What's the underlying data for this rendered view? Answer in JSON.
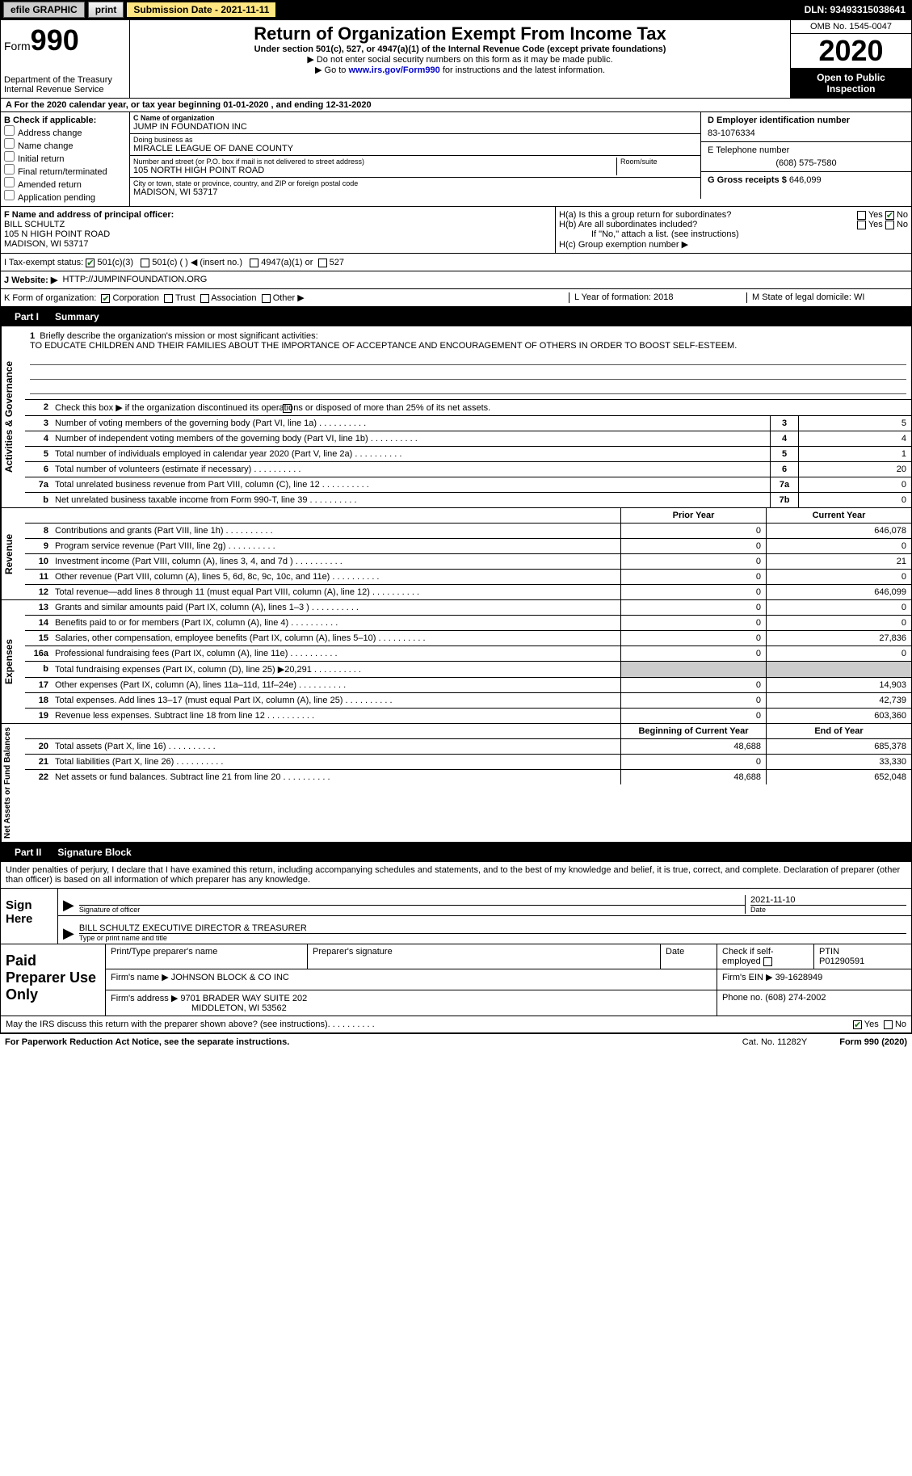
{
  "topbar": {
    "efile": "efile GRAPHIC",
    "print": "print",
    "submission": "Submission Date - 2021-11-11",
    "dln": "DLN: 93493315038641"
  },
  "header": {
    "form_word": "Form",
    "form_num": "990",
    "title": "Return of Organization Exempt From Income Tax",
    "subtitle": "Under section 501(c), 527, or 4947(a)(1) of the Internal Revenue Code (except private foundations)",
    "note1": "▶ Do not enter social security numbers on this form as it may be made public.",
    "note2_pre": "▶ Go to ",
    "note2_link": "www.irs.gov/Form990",
    "note2_post": " for instructions and the latest information.",
    "dept": "Department of the Treasury\nInternal Revenue Service",
    "omb": "OMB No. 1545-0047",
    "year": "2020",
    "open": "Open to Public Inspection"
  },
  "line_a": "A For the 2020 calendar year, or tax year beginning 01-01-2020  , and ending 12-31-2020",
  "box_b": {
    "label": "B Check if applicable:",
    "opt1": "Address change",
    "opt2": "Name change",
    "opt3": "Initial return",
    "opt4": "Final return/terminated",
    "opt5": "Amended return",
    "opt6": "Application pending"
  },
  "box_c": {
    "name_label": "C Name of organization",
    "name": "JUMP IN FOUNDATION INC",
    "dba_label": "Doing business as",
    "dba": "MIRACLE LEAGUE OF DANE COUNTY",
    "addr_label": "Number and street (or P.O. box if mail is not delivered to street address)",
    "room_label": "Room/suite",
    "addr": "105 NORTH HIGH POINT ROAD",
    "city_label": "City or town, state or province, country, and ZIP or foreign postal code",
    "city": "MADISON, WI  53717"
  },
  "box_d": {
    "label": "D Employer identification number",
    "ein": "83-1076334",
    "phone_label": "E Telephone number",
    "phone": "(608) 575-7580",
    "gross_label": "G Gross receipts $",
    "gross": "646,099"
  },
  "box_f": {
    "label": "F Name and address of principal officer:",
    "name": "BILL SCHULTZ",
    "addr1": "105 N HIGH POINT ROAD",
    "addr2": "MADISON, WI  53717"
  },
  "box_h": {
    "ha": "H(a)  Is this a group return for subordinates?",
    "hb": "H(b)  Are all subordinates included?",
    "hb_note": "If \"No,\" attach a list. (see instructions)",
    "hc": "H(c)  Group exemption number ▶",
    "yes": "Yes",
    "no": "No"
  },
  "row_i": {
    "label": "I    Tax-exempt status:",
    "o1": "501(c)(3)",
    "o2": "501(c) (  ) ◀ (insert no.)",
    "o3": "4947(a)(1) or",
    "o4": "527"
  },
  "row_j": {
    "label": "J    Website: ▶",
    "val": "HTTP://JUMPINFOUNDATION.ORG"
  },
  "row_k": {
    "label": "K Form of organization:",
    "o1": "Corporation",
    "o2": "Trust",
    "o3": "Association",
    "o4": "Other ▶"
  },
  "row_lm": {
    "l": "L Year of formation: 2018",
    "m": "M State of legal domicile: WI"
  },
  "part1": {
    "num": "Part I",
    "title": "Summary"
  },
  "mission": {
    "num1": "1",
    "label1": "Briefly describe the organization's mission or most significant activities:",
    "text": "TO EDUCATE CHILDREN AND THEIR FAMILIES ABOUT THE IMPORTANCE OF ACCEPTANCE AND ENCOURAGEMENT OF OTHERS IN ORDER TO BOOST SELF-ESTEEM.",
    "num2": "2",
    "label2": "Check this box ▶          if the organization discontinued its operations or disposed of more than 25% of its net assets."
  },
  "gov_rows": [
    {
      "n": "3",
      "label": "Number of voting members of the governing body (Part VI, line 1a)",
      "box": "3",
      "val": "5"
    },
    {
      "n": "4",
      "label": "Number of independent voting members of the governing body (Part VI, line 1b)",
      "box": "4",
      "val": "4"
    },
    {
      "n": "5",
      "label": "Total number of individuals employed in calendar year 2020 (Part V, line 2a)",
      "box": "5",
      "val": "1"
    },
    {
      "n": "6",
      "label": "Total number of volunteers (estimate if necessary)",
      "box": "6",
      "val": "20"
    },
    {
      "n": "7a",
      "label": "Total unrelated business revenue from Part VIII, column (C), line 12",
      "box": "7a",
      "val": "0"
    },
    {
      "n": "b",
      "label": "Net unrelated business taxable income from Form 990-T, line 39",
      "box": "7b",
      "val": "0"
    }
  ],
  "vtabs": {
    "gov": "Activities & Governance",
    "rev": "Revenue",
    "exp": "Expenses",
    "net": "Net Assets or Fund Balances"
  },
  "col_headers": {
    "prior": "Prior Year",
    "curr": "Current Year",
    "beg": "Beginning of Current Year",
    "end": "End of Year"
  },
  "rev_rows": [
    {
      "n": "8",
      "label": "Contributions and grants (Part VIII, line 1h)",
      "p": "0",
      "c": "646,078"
    },
    {
      "n": "9",
      "label": "Program service revenue (Part VIII, line 2g)",
      "p": "0",
      "c": "0"
    },
    {
      "n": "10",
      "label": "Investment income (Part VIII, column (A), lines 3, 4, and 7d )",
      "p": "0",
      "c": "21"
    },
    {
      "n": "11",
      "label": "Other revenue (Part VIII, column (A), lines 5, 6d, 8c, 9c, 10c, and 11e)",
      "p": "0",
      "c": "0"
    },
    {
      "n": "12",
      "label": "Total revenue—add lines 8 through 11 (must equal Part VIII, column (A), line 12)",
      "p": "0",
      "c": "646,099"
    }
  ],
  "exp_rows": [
    {
      "n": "13",
      "label": "Grants and similar amounts paid (Part IX, column (A), lines 1–3 )",
      "p": "0",
      "c": "0"
    },
    {
      "n": "14",
      "label": "Benefits paid to or for members (Part IX, column (A), line 4)",
      "p": "0",
      "c": "0"
    },
    {
      "n": "15",
      "label": "Salaries, other compensation, employee benefits (Part IX, column (A), lines 5–10)",
      "p": "0",
      "c": "27,836"
    },
    {
      "n": "16a",
      "label": "Professional fundraising fees (Part IX, column (A), line 11e)",
      "p": "0",
      "c": "0"
    },
    {
      "n": "b",
      "label": "Total fundraising expenses (Part IX, column (D), line 25) ▶20,291",
      "p": "",
      "c": "",
      "gray": true
    },
    {
      "n": "17",
      "label": "Other expenses (Part IX, column (A), lines 11a–11d, 11f–24e)",
      "p": "0",
      "c": "14,903"
    },
    {
      "n": "18",
      "label": "Total expenses. Add lines 13–17 (must equal Part IX, column (A), line 25)",
      "p": "0",
      "c": "42,739"
    },
    {
      "n": "19",
      "label": "Revenue less expenses. Subtract line 18 from line 12",
      "p": "0",
      "c": "603,360"
    }
  ],
  "net_rows": [
    {
      "n": "20",
      "label": "Total assets (Part X, line 16)",
      "p": "48,688",
      "c": "685,378"
    },
    {
      "n": "21",
      "label": "Total liabilities (Part X, line 26)",
      "p": "0",
      "c": "33,330"
    },
    {
      "n": "22",
      "label": "Net assets or fund balances. Subtract line 21 from line 20",
      "p": "48,688",
      "c": "652,048"
    }
  ],
  "part2": {
    "num": "Part II",
    "title": "Signature Block"
  },
  "sig": {
    "decl": "Under penalties of perjury, I declare that I have examined this return, including accompanying schedules and statements, and to the best of my knowledge and belief, it is true, correct, and complete. Declaration of preparer (other than officer) is based on all information of which preparer has any knowledge.",
    "sign_here": "Sign Here",
    "sig_officer": "Signature of officer",
    "date": "Date",
    "date_val": "2021-11-10",
    "type_name": "Type or print name and title",
    "officer_name": "BILL SCHULTZ  EXECUTIVE DIRECTOR & TREASURER"
  },
  "preparer": {
    "title": "Paid Preparer Use Only",
    "h1": "Print/Type preparer's name",
    "h2": "Preparer's signature",
    "h3": "Date",
    "h4": "Check          if self-employed",
    "h5": "PTIN",
    "ptin": "P01290591",
    "firm_label": "Firm's name    ▶",
    "firm": "JOHNSON BLOCK & CO INC",
    "firm_ein_label": "Firm's EIN ▶",
    "firm_ein": "39-1628949",
    "addr_label": "Firm's address ▶",
    "addr1": "9701 BRADER WAY SUITE 202",
    "addr2": "MIDDLETON, WI  53562",
    "phone_label": "Phone no.",
    "phone": "(608) 274-2002"
  },
  "discuss": {
    "label": "May the IRS discuss this return with the preparer shown above? (see instructions)",
    "yes": "Yes",
    "no": "No"
  },
  "footer": {
    "left": "For Paperwork Reduction Act Notice, see the separate instructions.",
    "mid": "Cat. No. 11282Y",
    "right": "Form 990 (2020)"
  }
}
